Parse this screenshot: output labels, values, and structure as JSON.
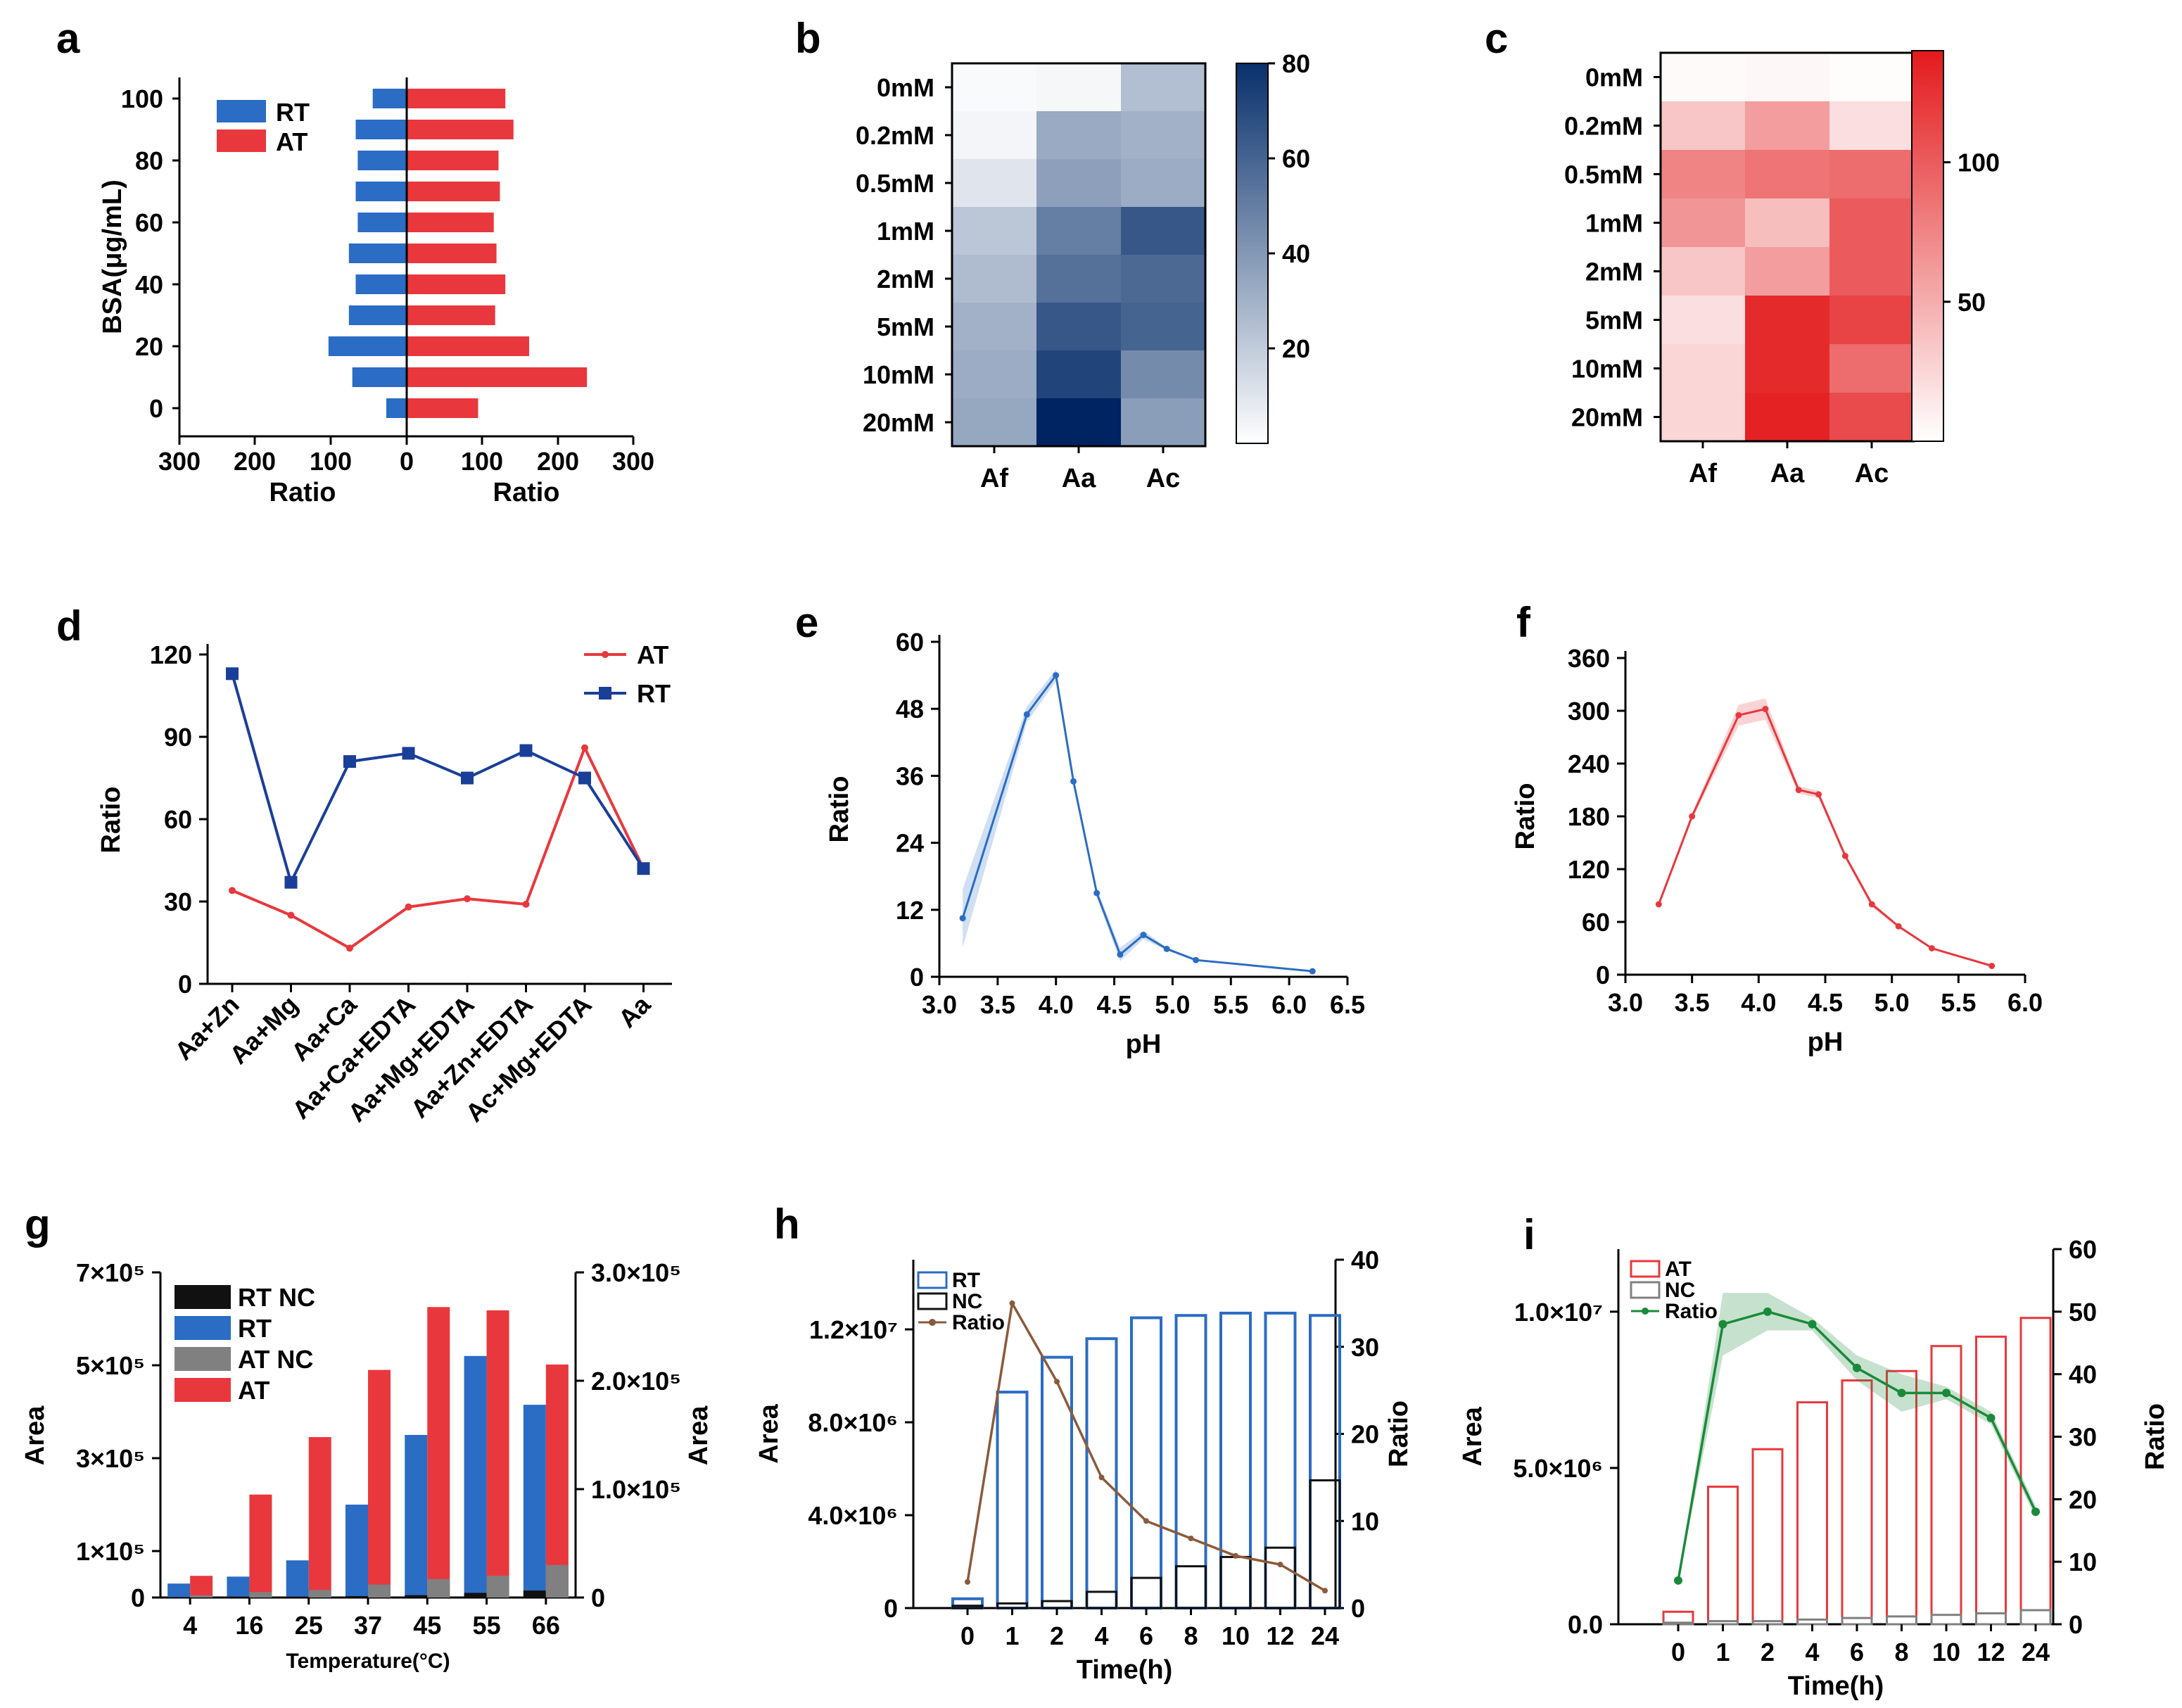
{
  "panel_letters": [
    "a",
    "b",
    "c",
    "d",
    "e",
    "f",
    "g",
    "h",
    "i"
  ],
  "chart_data": [
    {
      "id": "a",
      "type": "bar",
      "orientation": "horizontal-butterfly",
      "ylabel": "BSA(μg/mL)",
      "xlabel_left": "Ratio",
      "xlabel_right": "Ratio",
      "categories": [
        0,
        10,
        20,
        30,
        40,
        50,
        60,
        70,
        80,
        90,
        100
      ],
      "ytick_labels": [
        "0",
        "20",
        "40",
        "60",
        "80",
        "100"
      ],
      "xtick_labels": [
        "300",
        "200",
        "100",
        "0",
        "100",
        "200",
        "300"
      ],
      "legend": [
        "RT",
        "AT"
      ],
      "series": [
        {
          "name": "RT",
          "values": [
            30,
            80,
            115,
            85,
            75,
            85,
            72,
            75,
            72,
            75,
            50
          ]
        },
        {
          "name": "AT",
          "values": [
            105,
            265,
            180,
            130,
            145,
            132,
            128,
            137,
            135,
            157,
            145
          ]
        }
      ],
      "colors": {
        "RT": "#2b6cc4",
        "AT": "#e8383d"
      }
    },
    {
      "id": "b",
      "type": "heatmap",
      "rows": [
        "0mM",
        "0.2mM",
        "0.5mM",
        "1mM",
        "2mM",
        "5mM",
        "10mM",
        "20mM"
      ],
      "cols": [
        "Af",
        "Aa",
        "Ac"
      ],
      "values": [
        [
          2,
          3,
          25
        ],
        [
          4,
          33,
          30
        ],
        [
          10,
          37,
          32
        ],
        [
          22,
          50,
          65
        ],
        [
          26,
          55,
          58
        ],
        [
          30,
          65,
          60
        ],
        [
          32,
          72,
          45
        ],
        [
          34,
          85,
          38
        ]
      ],
      "range": [
        0,
        80
      ],
      "colorbar_ticks": [
        "20",
        "40",
        "60",
        "80"
      ],
      "color_low": "#ffffff",
      "color_high": "#08306b"
    },
    {
      "id": "c",
      "type": "heatmap",
      "rows": [
        "0mM",
        "0.2mM",
        "0.5mM",
        "1mM",
        "2mM",
        "5mM",
        "10mM",
        "20mM"
      ],
      "cols": [
        "Af",
        "Aa",
        "Ac"
      ],
      "values": [
        [
          3,
          5,
          2
        ],
        [
          35,
          60,
          20
        ],
        [
          75,
          85,
          90
        ],
        [
          65,
          40,
          100
        ],
        [
          35,
          60,
          100
        ],
        [
          20,
          130,
          115
        ],
        [
          25,
          130,
          90
        ],
        [
          25,
          135,
          110
        ]
      ],
      "range": [
        0,
        140
      ],
      "colorbar_ticks": [
        "50",
        "100"
      ],
      "color_low": "#ffffff",
      "color_high": "#e31a1c"
    },
    {
      "id": "d",
      "type": "line",
      "ylabel": "Ratio",
      "categories": [
        "Aa+Zn",
        "Aa+Mg",
        "Aa+Ca",
        "Aa+Ca+EDTA",
        "Aa+Mg+EDTA",
        "Aa+Zn+EDTA",
        "Ac+Mg+EDTA",
        "Aa"
      ],
      "ylim": [
        0,
        120
      ],
      "yticks": [
        "0",
        "30",
        "60",
        "90",
        "120"
      ],
      "series": [
        {
          "name": "AT",
          "values": [
            34,
            25,
            13,
            28,
            31,
            29,
            86,
            42
          ],
          "color": "#e8383d"
        },
        {
          "name": "RT",
          "values": [
            113,
            37,
            81,
            84,
            75,
            85,
            75,
            42
          ],
          "color": "#1a3f99"
        }
      ]
    },
    {
      "id": "e",
      "type": "line",
      "xlabel": "pH",
      "ylabel": "Ratio",
      "x": [
        3.2,
        3.75,
        4.0,
        4.15,
        4.35,
        4.55,
        4.75,
        4.95,
        5.2,
        6.2
      ],
      "y": [
        10.5,
        47,
        54,
        35,
        15,
        4,
        7.5,
        5,
        3,
        1
      ],
      "xlim": [
        3.0,
        6.5
      ],
      "ylim": [
        0,
        60
      ],
      "xticks": [
        "3.0",
        "3.5",
        "4.0",
        "4.5",
        "5.0",
        "5.5",
        "6.0",
        "6.5"
      ],
      "yticks": [
        "0",
        "12",
        "24",
        "36",
        "48",
        "60"
      ],
      "color": "#2b6cc4"
    },
    {
      "id": "f",
      "type": "line",
      "xlabel": "pH",
      "ylabel": "Ratio",
      "x": [
        3.25,
        3.5,
        3.85,
        4.05,
        4.3,
        4.45,
        4.65,
        4.85,
        5.05,
        5.3,
        5.75
      ],
      "y": [
        80,
        180,
        295,
        302,
        210,
        205,
        135,
        80,
        55,
        30,
        10
      ],
      "xlim": [
        3.0,
        6.0
      ],
      "ylim": [
        0,
        360
      ],
      "xticks": [
        "3.0",
        "3.5",
        "4.0",
        "4.5",
        "5.0",
        "5.5",
        "6.0"
      ],
      "yticks": [
        "0",
        "60",
        "120",
        "180",
        "240",
        "300",
        "360"
      ],
      "color": "#e8383d"
    },
    {
      "id": "g",
      "type": "bar",
      "xlabel": "Temperature(°C)",
      "ylabel_left": "Area",
      "ylabel_right": "Area",
      "categories": [
        "4",
        "16",
        "25",
        "37",
        "45",
        "55",
        "66"
      ],
      "left_ylim": [
        0,
        700000
      ],
      "left_ticks": [
        "0",
        "1×10⁵",
        "3×10⁵",
        "5×10⁵",
        "7×10⁵"
      ],
      "right_ylim": [
        0,
        300000
      ],
      "right_ticks": [
        "0",
        "1.0×10⁵",
        "2.0×10⁵",
        "3.0×10⁵"
      ],
      "legend": [
        "RT NC",
        "RT",
        "AT NC",
        "AT"
      ],
      "series": [
        {
          "name": "RT NC",
          "axis": "left",
          "values": [
            1000,
            2000,
            2000,
            3000,
            5000,
            10000,
            15000
          ],
          "color": "#111111"
        },
        {
          "name": "RT",
          "axis": "left",
          "values": [
            30000,
            45000,
            80000,
            200000,
            350000,
            520000,
            415000
          ],
          "color": "#2b6cc4"
        },
        {
          "name": "AT NC",
          "axis": "right",
          "values": [
            2000,
            5000,
            7000,
            12000,
            17000,
            20000,
            30000
          ],
          "color": "#808080"
        },
        {
          "name": "AT",
          "axis": "right",
          "values": [
            20000,
            95000,
            148000,
            210000,
            268000,
            265000,
            215000
          ],
          "color": "#e8383d"
        }
      ]
    },
    {
      "id": "h",
      "type": "bar+line",
      "xlabel": "Time(h)",
      "ylabel_left": "Area",
      "ylabel_right": "Ratio",
      "categories": [
        "0",
        "1",
        "2",
        "4",
        "6",
        "8",
        "10",
        "12",
        "24"
      ],
      "left_ylim": [
        0,
        15000000
      ],
      "left_ticks": [
        "0",
        "4.0×10⁶",
        "8.0×10⁶",
        "1.2×10⁷"
      ],
      "right_ylim": [
        0,
        40
      ],
      "right_ticks": [
        "0",
        "10",
        "20",
        "30",
        "40"
      ],
      "legend": [
        "RT",
        "NC",
        "Ratio"
      ],
      "series": [
        {
          "name": "RT",
          "type": "bar",
          "values": [
            400000,
            9300000,
            10800000,
            11600000,
            12500000,
            12600000,
            12700000,
            12700000,
            12600000
          ],
          "color": "#2b6cc4"
        },
        {
          "name": "NC",
          "type": "bar",
          "values": [
            100000,
            200000,
            300000,
            700000,
            1300000,
            1800000,
            2200000,
            2600000,
            5500000
          ],
          "color": "#111111"
        },
        {
          "name": "Ratio",
          "type": "line",
          "axis": "right",
          "values": [
            3,
            35,
            26,
            15,
            10,
            8,
            6,
            5,
            2
          ],
          "color": "#8b5a3c"
        }
      ]
    },
    {
      "id": "i",
      "type": "bar+line",
      "xlabel": "Time(h)",
      "ylabel_left": "Area",
      "ylabel_right": "Ratio",
      "categories": [
        "0",
        "1",
        "2",
        "4",
        "6",
        "8",
        "10",
        "12",
        "24"
      ],
      "left_ylim": [
        0,
        12000000
      ],
      "left_ticks": [
        "0.0",
        "5.0×10⁶",
        "1.0×10⁷"
      ],
      "right_ylim": [
        0,
        60
      ],
      "right_ticks": [
        "0",
        "10",
        "20",
        "30",
        "40",
        "50",
        "60"
      ],
      "legend": [
        "AT",
        "NC",
        "Ratio"
      ],
      "series": [
        {
          "name": "AT",
          "type": "bar",
          "values": [
            400000,
            4400000,
            5600000,
            7100000,
            7800000,
            8100000,
            8900000,
            9200000,
            9800000
          ],
          "color": "#e8383d"
        },
        {
          "name": "NC",
          "type": "bar",
          "values": [
            50000,
            100000,
            100000,
            150000,
            200000,
            250000,
            300000,
            350000,
            450000
          ],
          "color": "#808080"
        },
        {
          "name": "Ratio",
          "type": "line",
          "axis": "right",
          "values": [
            7,
            48,
            50,
            48,
            41,
            37,
            37,
            33,
            18
          ],
          "color": "#1a8a3a"
        }
      ]
    }
  ]
}
